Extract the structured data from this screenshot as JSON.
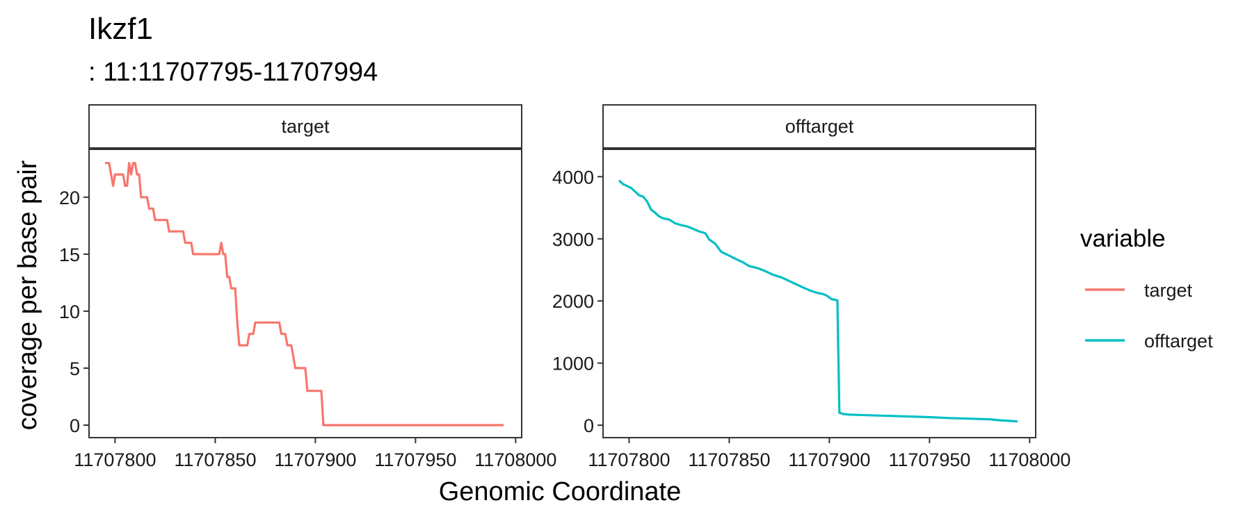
{
  "chart_data": {
    "type": "line",
    "title": "Ikzf1",
    "subtitle": ": 11:11707795-11707994",
    "xlabel": "Genomic Coordinate",
    "ylabel": "coverage per base pair",
    "legend_title": "variable",
    "legend_position": "right",
    "grid": false,
    "x_ticks": [
      "11707800",
      "11707850",
      "11707900",
      "11707950",
      "11708000"
    ],
    "x_tick_values": [
      11707800,
      11707850,
      11707900,
      11707950,
      11708000
    ],
    "panels": [
      {
        "strip": "target",
        "series_name": "target",
        "color": "#F8766D",
        "xlim": [
          11707787,
          11708003
        ],
        "ylim": [
          -1.1,
          24.2
        ],
        "y_ticks": [
          "0",
          "5",
          "10",
          "15",
          "20"
        ],
        "y_tick_values": [
          0,
          5,
          10,
          15,
          20
        ],
        "points": [
          [
            11707795,
            23
          ],
          [
            11707797,
            23
          ],
          [
            11707799,
            21
          ],
          [
            11707800,
            22
          ],
          [
            11707804,
            22
          ],
          [
            11707805,
            21
          ],
          [
            11707806,
            21
          ],
          [
            11707807,
            23
          ],
          [
            11707808,
            22
          ],
          [
            11707809,
            23
          ],
          [
            11707810,
            23
          ],
          [
            11707811,
            22
          ],
          [
            11707812,
            22
          ],
          [
            11707813,
            20
          ],
          [
            11707816,
            20
          ],
          [
            11707817,
            19
          ],
          [
            11707819,
            19
          ],
          [
            11707820,
            18
          ],
          [
            11707826,
            18
          ],
          [
            11707827,
            17
          ],
          [
            11707834,
            17
          ],
          [
            11707835,
            16
          ],
          [
            11707838,
            16
          ],
          [
            11707839,
            15
          ],
          [
            11707852,
            15
          ],
          [
            11707853,
            16
          ],
          [
            11707854,
            15
          ],
          [
            11707855,
            15
          ],
          [
            11707856,
            13
          ],
          [
            11707857,
            13
          ],
          [
            11707858,
            12
          ],
          [
            11707860,
            12
          ],
          [
            11707861,
            9
          ],
          [
            11707862,
            7
          ],
          [
            11707866,
            7
          ],
          [
            11707867,
            8
          ],
          [
            11707869,
            8
          ],
          [
            11707870,
            9
          ],
          [
            11707882,
            9
          ],
          [
            11707883,
            8
          ],
          [
            11707885,
            8
          ],
          [
            11707886,
            7
          ],
          [
            11707888,
            7
          ],
          [
            11707890,
            5
          ],
          [
            11707895,
            5
          ],
          [
            11707896,
            3
          ],
          [
            11707903,
            3
          ],
          [
            11707904,
            0
          ],
          [
            11707994,
            0
          ]
        ]
      },
      {
        "strip": "offtarget",
        "series_name": "offtarget",
        "color": "#00BFC4",
        "xlim": [
          11707787,
          11708003
        ],
        "ylim": [
          -200,
          4440
        ],
        "y_ticks": [
          "0",
          "1000",
          "2000",
          "3000",
          "4000"
        ],
        "y_tick_values": [
          0,
          1000,
          2000,
          3000,
          4000
        ],
        "points": [
          [
            11707795,
            3940
          ],
          [
            11707797,
            3880
          ],
          [
            11707799,
            3850
          ],
          [
            11707801,
            3820
          ],
          [
            11707803,
            3760
          ],
          [
            11707805,
            3700
          ],
          [
            11707807,
            3680
          ],
          [
            11707809,
            3600
          ],
          [
            11707811,
            3470
          ],
          [
            11707813,
            3420
          ],
          [
            11707815,
            3360
          ],
          [
            11707817,
            3330
          ],
          [
            11707820,
            3310
          ],
          [
            11707823,
            3250
          ],
          [
            11707826,
            3220
          ],
          [
            11707829,
            3200
          ],
          [
            11707832,
            3160
          ],
          [
            11707835,
            3120
          ],
          [
            11707838,
            3090
          ],
          [
            11707840,
            2990
          ],
          [
            11707843,
            2920
          ],
          [
            11707846,
            2790
          ],
          [
            11707850,
            2730
          ],
          [
            11707853,
            2680
          ],
          [
            11707857,
            2620
          ],
          [
            11707860,
            2560
          ],
          [
            11707864,
            2530
          ],
          [
            11707868,
            2480
          ],
          [
            11707872,
            2420
          ],
          [
            11707876,
            2380
          ],
          [
            11707880,
            2320
          ],
          [
            11707884,
            2260
          ],
          [
            11707888,
            2200
          ],
          [
            11707891,
            2160
          ],
          [
            11707894,
            2130
          ],
          [
            11707897,
            2110
          ],
          [
            11707899,
            2080
          ],
          [
            11707901,
            2030
          ],
          [
            11707904,
            2010
          ],
          [
            11707905,
            200
          ],
          [
            11707907,
            180
          ],
          [
            11707910,
            170
          ],
          [
            11707920,
            160
          ],
          [
            11707930,
            150
          ],
          [
            11707940,
            140
          ],
          [
            11707950,
            130
          ],
          [
            11707960,
            115
          ],
          [
            11707970,
            105
          ],
          [
            11707980,
            95
          ],
          [
            11707985,
            80
          ],
          [
            11707990,
            70
          ],
          [
            11707994,
            60
          ]
        ]
      }
    ]
  }
}
